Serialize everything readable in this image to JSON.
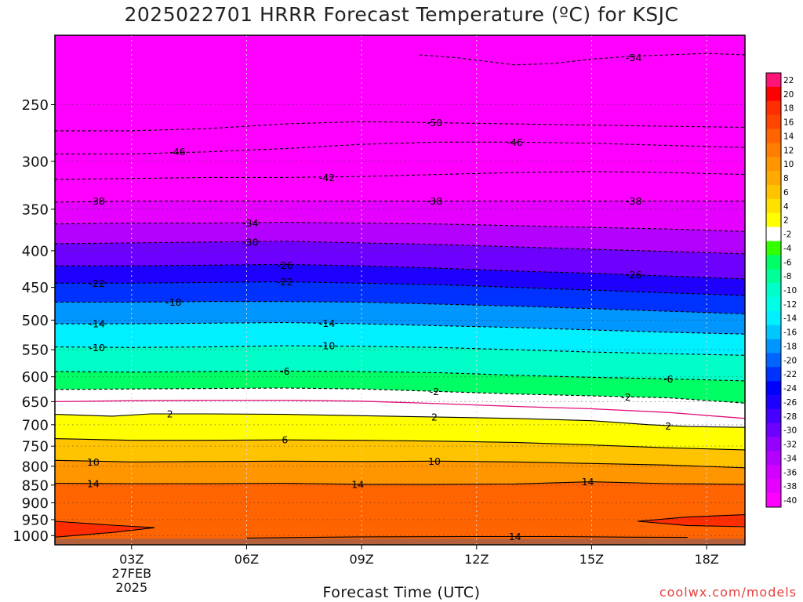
{
  "chart_data": {
    "type": "heatmap",
    "title": "2025022701 HRRR Forecast Temperature (ºC) for KSJC",
    "xlabel": "Forecast Time (UTC)",
    "ylabel": "",
    "x_hours": [
      1,
      19
    ],
    "x_ticks": [
      {
        "hour": 3,
        "label": "03Z"
      },
      {
        "hour": 6,
        "label": "06Z"
      },
      {
        "hour": 9,
        "label": "09Z"
      },
      {
        "hour": 12,
        "label": "12Z"
      },
      {
        "hour": 15,
        "label": "15Z"
      },
      {
        "hour": 18,
        "label": "18Z"
      }
    ],
    "x_date_label": [
      "27FEB",
      "2025"
    ],
    "y_scale": "log-pressure",
    "y_range": [
      1030,
      200
    ],
    "y_ticks": [
      250,
      300,
      350,
      400,
      450,
      500,
      550,
      600,
      650,
      700,
      750,
      800,
      850,
      900,
      950,
      1000
    ],
    "colorbar": {
      "levels": [
        22,
        20,
        18,
        16,
        14,
        12,
        10,
        8,
        6,
        4,
        2,
        -2,
        -4,
        -6,
        -8,
        -10,
        -12,
        -14,
        -16,
        -18,
        -20,
        -22,
        -24,
        -26,
        -28,
        -30,
        -32,
        -34,
        -36,
        -38,
        -40
      ],
      "colors": [
        "#ff1478",
        "#ff0000",
        "#ff2d00",
        "#ff4500",
        "#ff6400",
        "#ff7d00",
        "#ff9600",
        "#ffaa00",
        "#ffc300",
        "#ffe100",
        "#ffff00",
        "#ffffff",
        "#32ff00",
        "#00ff64",
        "#00ff96",
        "#00ffc8",
        "#00ffe6",
        "#00f0ff",
        "#00c8ff",
        "#0096ff",
        "#0064ff",
        "#0032ff",
        "#0000ff",
        "#1e00ff",
        "#4600ff",
        "#6e00ff",
        "#9600ff",
        "#b400ff",
        "#d200ff",
        "#e600ff",
        "#ff00ff"
      ]
    },
    "isotherms": [
      {
        "temp": -54,
        "style": "dashed",
        "points": [
          [
            10.5,
            213
          ],
          [
            11.5,
            215
          ],
          [
            13,
            220
          ],
          [
            14,
            219
          ],
          [
            15,
            216
          ],
          [
            16,
            214
          ],
          [
            17,
            213
          ],
          [
            18,
            212
          ],
          [
            19,
            213
          ]
        ]
      },
      {
        "temp": -50,
        "style": "dashed",
        "points": [
          [
            1,
            272
          ],
          [
            3,
            272
          ],
          [
            5,
            270
          ],
          [
            7,
            266
          ],
          [
            9,
            264
          ],
          [
            11,
            265
          ],
          [
            13,
            266
          ],
          [
            15,
            267
          ],
          [
            17,
            268
          ],
          [
            19,
            269
          ]
        ]
      },
      {
        "temp": -46,
        "style": "dashed",
        "points": [
          [
            1,
            293
          ],
          [
            3,
            293
          ],
          [
            5,
            291
          ],
          [
            7,
            288
          ],
          [
            9,
            284
          ],
          [
            11,
            282
          ],
          [
            13,
            282
          ],
          [
            15,
            283
          ],
          [
            17,
            285
          ],
          [
            19,
            287
          ]
        ]
      },
      {
        "temp": -42,
        "style": "dashed",
        "points": [
          [
            1,
            318
          ],
          [
            3,
            317
          ],
          [
            5,
            316
          ],
          [
            7,
            316
          ],
          [
            9,
            315
          ],
          [
            11,
            313
          ],
          [
            13,
            311
          ],
          [
            15,
            310
          ],
          [
            17,
            311
          ],
          [
            19,
            313
          ]
        ]
      },
      {
        "temp": -38,
        "style": "dashed",
        "points": [
          [
            1,
            342
          ],
          [
            3,
            341
          ],
          [
            5,
            341
          ],
          [
            7,
            341
          ],
          [
            9,
            341
          ],
          [
            11,
            341
          ],
          [
            13,
            341
          ],
          [
            15,
            341
          ],
          [
            17,
            341
          ],
          [
            19,
            341
          ]
        ]
      },
      {
        "temp": -34,
        "style": "dashed",
        "points": [
          [
            1,
            367
          ],
          [
            3,
            366
          ],
          [
            5,
            366
          ],
          [
            7,
            365
          ],
          [
            9,
            366
          ],
          [
            11,
            367
          ],
          [
            13,
            369
          ],
          [
            15,
            371
          ],
          [
            17,
            373
          ],
          [
            19,
            376
          ]
        ]
      },
      {
        "temp": -30,
        "style": "dashed",
        "points": [
          [
            1,
            391
          ],
          [
            3,
            390
          ],
          [
            5,
            389
          ],
          [
            7,
            388
          ],
          [
            9,
            390
          ],
          [
            11,
            392
          ],
          [
            13,
            395
          ],
          [
            15,
            398
          ],
          [
            17,
            401
          ],
          [
            19,
            404
          ]
        ]
      },
      {
        "temp": -26,
        "style": "dashed",
        "points": [
          [
            1,
            420
          ],
          [
            3,
            420
          ],
          [
            5,
            419
          ],
          [
            7,
            418
          ],
          [
            9,
            420
          ],
          [
            11,
            423
          ],
          [
            13,
            427
          ],
          [
            15,
            430
          ],
          [
            17,
            434
          ],
          [
            19,
            438
          ]
        ]
      },
      {
        "temp": -22,
        "style": "dashed",
        "points": [
          [
            1,
            444
          ],
          [
            3,
            444
          ],
          [
            5,
            443
          ],
          [
            7,
            442
          ],
          [
            9,
            444
          ],
          [
            11,
            446
          ],
          [
            13,
            450
          ],
          [
            15,
            454
          ],
          [
            17,
            458
          ],
          [
            19,
            462
          ]
        ]
      },
      {
        "temp": -18,
        "style": "dashed",
        "points": [
          [
            1,
            472
          ],
          [
            3,
            472
          ],
          [
            5,
            471
          ],
          [
            7,
            471
          ],
          [
            9,
            472
          ],
          [
            11,
            475
          ],
          [
            13,
            478
          ],
          [
            15,
            482
          ],
          [
            17,
            486
          ],
          [
            19,
            490
          ]
        ]
      },
      {
        "temp": -14,
        "style": "dashed",
        "points": [
          [
            1,
            506
          ],
          [
            3,
            506
          ],
          [
            5,
            505
          ],
          [
            7,
            504
          ],
          [
            9,
            506
          ],
          [
            11,
            509
          ],
          [
            13,
            512
          ],
          [
            15,
            516
          ],
          [
            17,
            520
          ],
          [
            19,
            523
          ]
        ]
      },
      {
        "temp": -10,
        "style": "dashed",
        "points": [
          [
            1,
            545
          ],
          [
            3,
            546
          ],
          [
            5,
            545
          ],
          [
            7,
            543
          ],
          [
            9,
            544
          ],
          [
            11,
            546
          ],
          [
            13,
            550
          ],
          [
            15,
            554
          ],
          [
            17,
            557
          ],
          [
            19,
            560
          ]
        ]
      },
      {
        "temp": -6,
        "style": "dashed",
        "points": [
          [
            1,
            590
          ],
          [
            3,
            591
          ],
          [
            5,
            590
          ],
          [
            7,
            589
          ],
          [
            9,
            590
          ],
          [
            11,
            592
          ],
          [
            13,
            597
          ],
          [
            15,
            601
          ],
          [
            17,
            604
          ],
          [
            19,
            608
          ]
        ]
      },
      {
        "temp": -2,
        "style": "dashed",
        "points": [
          [
            1,
            625
          ],
          [
            3,
            624
          ],
          [
            5,
            623
          ],
          [
            7,
            622
          ],
          [
            9,
            624
          ],
          [
            11,
            629
          ],
          [
            13,
            634
          ],
          [
            15,
            638
          ],
          [
            17,
            642
          ],
          [
            19,
            653
          ]
        ]
      },
      {
        "temp": 0,
        "style": "freezing",
        "points": [
          [
            1,
            650
          ],
          [
            3,
            648
          ],
          [
            5,
            647
          ],
          [
            7,
            647
          ],
          [
            9,
            649
          ],
          [
            11,
            654
          ],
          [
            13,
            660
          ],
          [
            15,
            665
          ],
          [
            17,
            673
          ],
          [
            19,
            686
          ]
        ]
      },
      {
        "temp": 2,
        "style": "solid",
        "points": [
          [
            1,
            677
          ],
          [
            2.5,
            681
          ],
          [
            3.5,
            676
          ],
          [
            5,
            676
          ],
          [
            7,
            677
          ],
          [
            9,
            680
          ],
          [
            11,
            683
          ],
          [
            13,
            686
          ],
          [
            15,
            691
          ],
          [
            16.5,
            700
          ],
          [
            17.5,
            704
          ],
          [
            19,
            706
          ]
        ]
      },
      {
        "temp": 6,
        "style": "solid",
        "points": [
          [
            1,
            732
          ],
          [
            3,
            736
          ],
          [
            5,
            736
          ],
          [
            7,
            735
          ],
          [
            9,
            736
          ],
          [
            11,
            738
          ],
          [
            13,
            741
          ],
          [
            15,
            747
          ],
          [
            17,
            754
          ],
          [
            19,
            759
          ]
        ]
      },
      {
        "temp": 10,
        "style": "solid",
        "points": [
          [
            1,
            785
          ],
          [
            3,
            789
          ],
          [
            5,
            788
          ],
          [
            7,
            787
          ],
          [
            9,
            788
          ],
          [
            11,
            787
          ],
          [
            13,
            789
          ],
          [
            15,
            793
          ],
          [
            17,
            797
          ],
          [
            19,
            804
          ]
        ]
      },
      {
        "temp": 14,
        "style": "solid",
        "points": [
          [
            1,
            845
          ],
          [
            3,
            846
          ],
          [
            5,
            846
          ],
          [
            7,
            845
          ],
          [
            9,
            848
          ],
          [
            11,
            848
          ],
          [
            13,
            847
          ],
          [
            15,
            841
          ],
          [
            17,
            846
          ],
          [
            19,
            848
          ]
        ]
      },
      {
        "temp": 14,
        "style": "solid",
        "points": [
          [
            6,
            1008
          ],
          [
            9,
            1004
          ],
          [
            12,
            1003
          ],
          [
            14,
            1003
          ],
          [
            16,
            1005
          ],
          [
            17.5,
            1006
          ]
        ]
      }
    ],
    "warm_pockets": [
      {
        "temp": 18,
        "points": [
          [
            1,
            955
          ],
          [
            2.5,
            967
          ],
          [
            3.6,
            975
          ],
          [
            2.5,
            990
          ],
          [
            1.5,
            1000
          ],
          [
            1,
            1005
          ]
        ]
      },
      {
        "temp": 18,
        "points": [
          [
            19,
            935
          ],
          [
            17.5,
            942
          ],
          [
            16.2,
            955
          ],
          [
            17.5,
            968
          ],
          [
            19,
            972
          ]
        ]
      }
    ],
    "surface": {
      "pressure": 1010,
      "color": "#b4603c"
    },
    "contour_labels": [
      {
        "text": "-54",
        "hour": 16.1,
        "p": 215
      },
      {
        "text": "-50",
        "hour": 10.9,
        "p": 265
      },
      {
        "text": "-46",
        "hour": 4.2,
        "p": 291
      },
      {
        "text": "-46",
        "hour": 13.0,
        "p": 282
      },
      {
        "text": "-42",
        "hour": 8.1,
        "p": 316
      },
      {
        "text": "-38",
        "hour": 2.1,
        "p": 341
      },
      {
        "text": "-38",
        "hour": 10.9,
        "p": 341
      },
      {
        "text": "-38",
        "hour": 16.1,
        "p": 341
      },
      {
        "text": "-34",
        "hour": 6.1,
        "p": 366
      },
      {
        "text": "-30",
        "hour": 6.1,
        "p": 389
      },
      {
        "text": "-26",
        "hour": 7.0,
        "p": 419
      },
      {
        "text": "-26",
        "hour": 16.1,
        "p": 432
      },
      {
        "text": "-22",
        "hour": 2.1,
        "p": 444
      },
      {
        "text": "-22",
        "hour": 7.0,
        "p": 442
      },
      {
        "text": "-18",
        "hour": 4.1,
        "p": 472
      },
      {
        "text": "-14",
        "hour": 2.1,
        "p": 506
      },
      {
        "text": "-14",
        "hour": 8.1,
        "p": 505
      },
      {
        "text": "-10",
        "hour": 2.1,
        "p": 546
      },
      {
        "text": "-10",
        "hour": 8.1,
        "p": 543
      },
      {
        "text": "-6",
        "hour": 7.0,
        "p": 589
      },
      {
        "text": "-6",
        "hour": 17.0,
        "p": 604
      },
      {
        "text": "-2",
        "hour": 10.9,
        "p": 629
      },
      {
        "text": "-2",
        "hour": 15.9,
        "p": 640
      },
      {
        "text": "2",
        "hour": 4.0,
        "p": 676
      },
      {
        "text": "2",
        "hour": 10.9,
        "p": 683
      },
      {
        "text": "2",
        "hour": 17.0,
        "p": 703
      },
      {
        "text": "6",
        "hour": 7.0,
        "p": 735
      },
      {
        "text": "10",
        "hour": 2.0,
        "p": 789
      },
      {
        "text": "10",
        "hour": 10.9,
        "p": 787
      },
      {
        "text": "14",
        "hour": 2.0,
        "p": 846
      },
      {
        "text": "14",
        "hour": 8.9,
        "p": 848
      },
      {
        "text": "14",
        "hour": 14.9,
        "p": 841
      },
      {
        "text": "14",
        "hour": 13.0,
        "p": 1003
      }
    ]
  },
  "footer": {
    "watermark": "coolwx.com/models"
  }
}
